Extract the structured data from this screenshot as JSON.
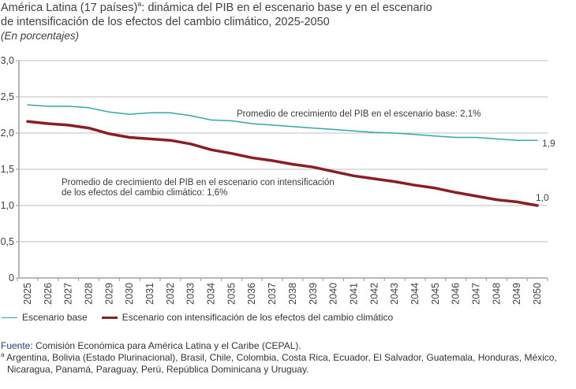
{
  "header": {
    "title_part1": "América Latina (17 países)",
    "title_sup": "a",
    "title_part2": ": dinámica del PIB en el escenario base y en el escenario",
    "title_line2": "de intensificación de los efectos del cambio climático, 2025-2050",
    "subtitle": "(En porcentajes)"
  },
  "chart_data": {
    "type": "line",
    "title": "América Latina (17 países): dinámica del PIB en el escenario base y en el escenario de intensificación de los efectos del cambio climático, 2025-2050",
    "subtitle": "(En porcentajes)",
    "xlabel": "",
    "ylabel": "",
    "ylim": [
      0,
      3.0
    ],
    "yticks": [
      0,
      0.5,
      1.0,
      1.5,
      2.0,
      2.5,
      3.0
    ],
    "ytick_labels": [
      "0",
      "0,5",
      "1,0",
      "1,5",
      "2,0",
      "2,5",
      "3,0"
    ],
    "grid": "horizontal",
    "x": [
      "2025",
      "2026",
      "2027",
      "2028",
      "2029",
      "2030",
      "2031",
      "2032",
      "2033",
      "2034",
      "2035",
      "2036",
      "2037",
      "2038",
      "2039",
      "2040",
      "2041",
      "2042",
      "2043",
      "2044",
      "2045",
      "2046",
      "2047",
      "2048",
      "2049",
      "2050"
    ],
    "series": [
      {
        "name": "Escenario base",
        "color": "#33a7a5",
        "values": [
          2.39,
          2.37,
          2.37,
          2.35,
          2.29,
          2.26,
          2.28,
          2.28,
          2.24,
          2.18,
          2.17,
          2.13,
          2.11,
          2.09,
          2.07,
          2.05,
          2.03,
          2.01,
          2.0,
          1.98,
          1.96,
          1.94,
          1.94,
          1.92,
          1.9,
          1.9
        ],
        "end_label": "1,9"
      },
      {
        "name": "Escenario con intensificación de los efectos del cambio climático",
        "color": "#8b1e24",
        "values": [
          2.16,
          2.13,
          2.11,
          2.07,
          1.99,
          1.94,
          1.92,
          1.9,
          1.85,
          1.77,
          1.72,
          1.66,
          1.62,
          1.57,
          1.53,
          1.47,
          1.41,
          1.37,
          1.33,
          1.28,
          1.24,
          1.18,
          1.13,
          1.08,
          1.05,
          1.0
        ],
        "end_label": "1,0"
      }
    ],
    "annotations": [
      {
        "text": "Promedio de crecimiento del PIB en el escenario base: 2,1%",
        "series": 0
      },
      {
        "text_line1": "Promedio de crecimiento del PIB en el escenario con intensificación",
        "text_line2": "de los efectos del cambio climático: 1,6%",
        "series": 1
      }
    ],
    "legend": "bottom-left"
  },
  "legend": {
    "items": [
      {
        "label": "Escenario base"
      },
      {
        "label": "Escenario con intensificación de los efectos del cambio climático"
      }
    ]
  },
  "notes": {
    "source_label": "Fuente",
    "source_text": ":  Comisión Económica para América Latina y el Caribe (CEPAL).",
    "footnote_marker": "a",
    "footnote_line1": " Argentina, Bolivia (Estado Plurinacional), Brasil, Chile, Colombia, Costa Rica, Ecuador, El Salvador, Guatemala, Honduras, México,",
    "footnote_line2": "Nicaragua, Panamá, Paraguay, Perú, República Dominicana y Uruguay."
  }
}
